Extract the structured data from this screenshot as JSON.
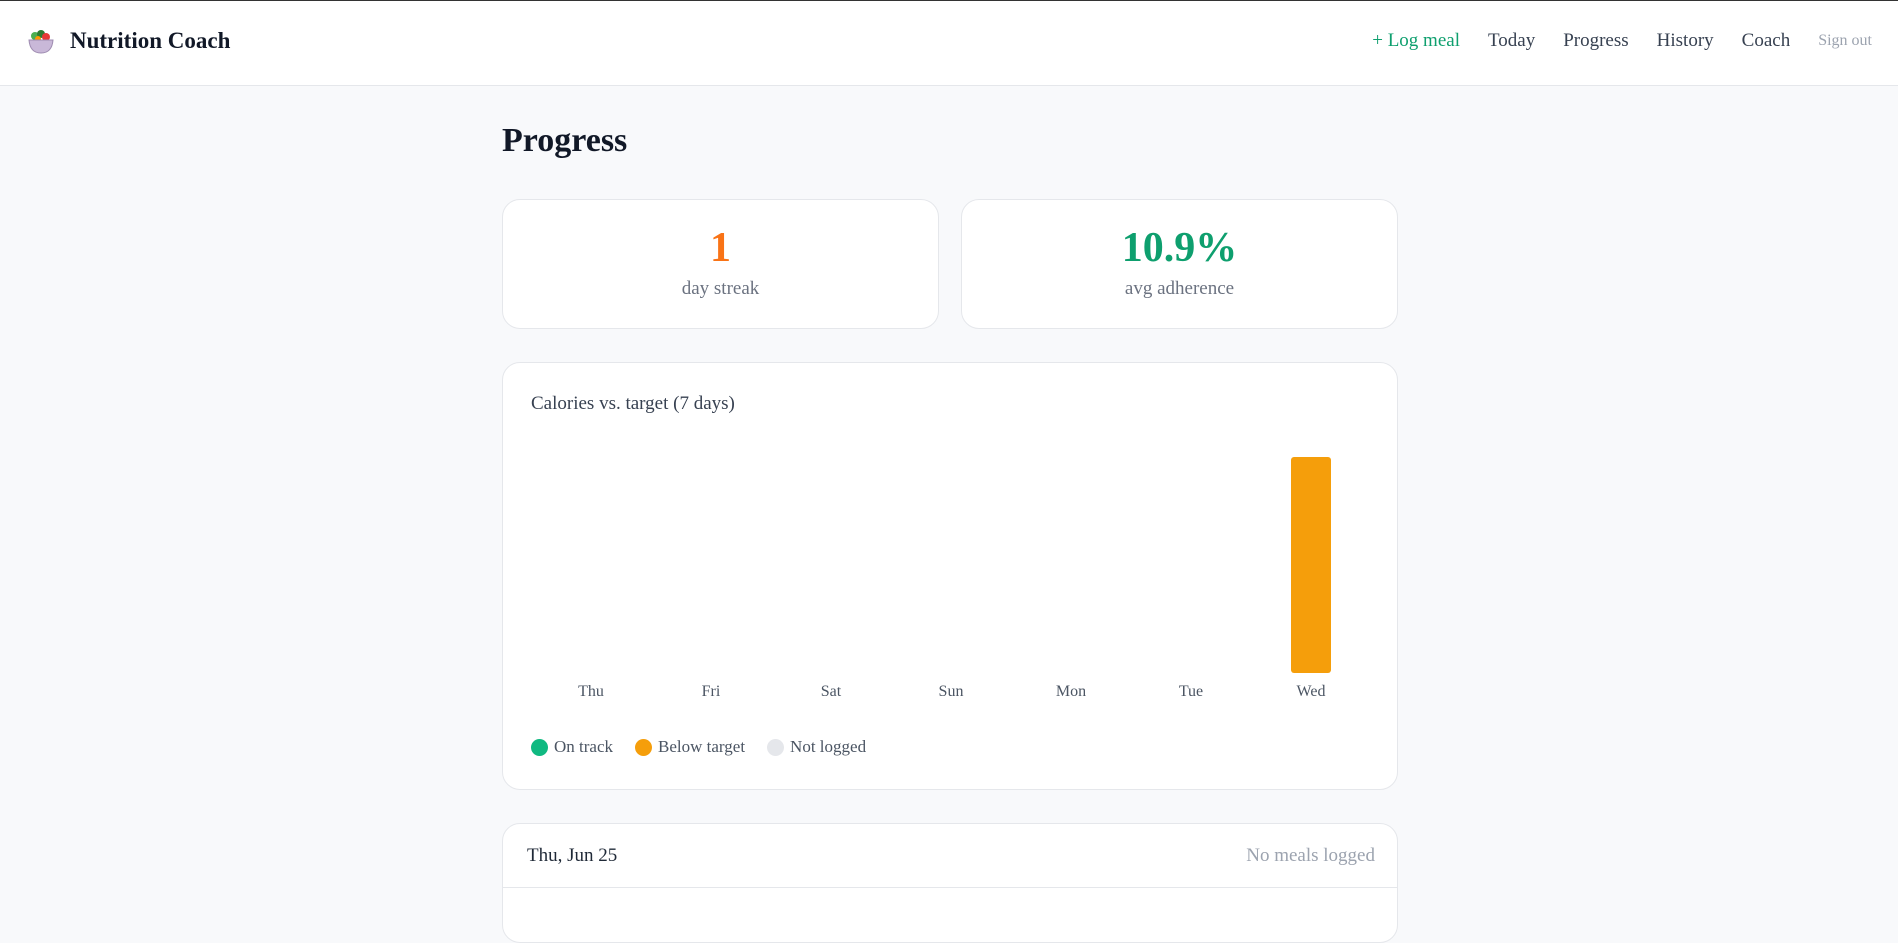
{
  "app": {
    "title": "Nutrition Coach",
    "logo_icon": "salad-bowl-icon"
  },
  "nav": {
    "log_meal": "+ Log meal",
    "today": "Today",
    "progress": "Progress",
    "history": "History",
    "coach": "Coach",
    "sign_out": "Sign out"
  },
  "page": {
    "title": "Progress"
  },
  "stats": {
    "streak": {
      "value": "1",
      "label": "day streak",
      "color": "#f97316"
    },
    "adherence": {
      "value": "10.9%",
      "label": "avg adherence",
      "color": "#0e9f6e"
    }
  },
  "chart_data": {
    "type": "bar",
    "title": "Calories vs. target (7 days)",
    "categories": [
      "Thu",
      "Fri",
      "Sat",
      "Sun",
      "Mon",
      "Tue",
      "Wed"
    ],
    "values": [
      0,
      0,
      0,
      0,
      0,
      0,
      1
    ],
    "status": [
      "not_logged",
      "not_logged",
      "not_logged",
      "not_logged",
      "not_logged",
      "not_logged",
      "below_target"
    ],
    "ylim": [
      0,
      1
    ],
    "xlabel": "",
    "ylabel": "",
    "grid": false,
    "legend": {
      "placement": "bottom-left",
      "items": [
        {
          "key": "on_track",
          "label": "On track",
          "color": "#10b981"
        },
        {
          "key": "below_target",
          "label": "Below target",
          "color": "#f59e0b"
        },
        {
          "key": "not_logged",
          "label": "Not logged",
          "color": "#e5e7eb"
        }
      ]
    }
  },
  "days": [
    {
      "date": "Thu, Jun 25",
      "status": "No meals logged"
    }
  ]
}
